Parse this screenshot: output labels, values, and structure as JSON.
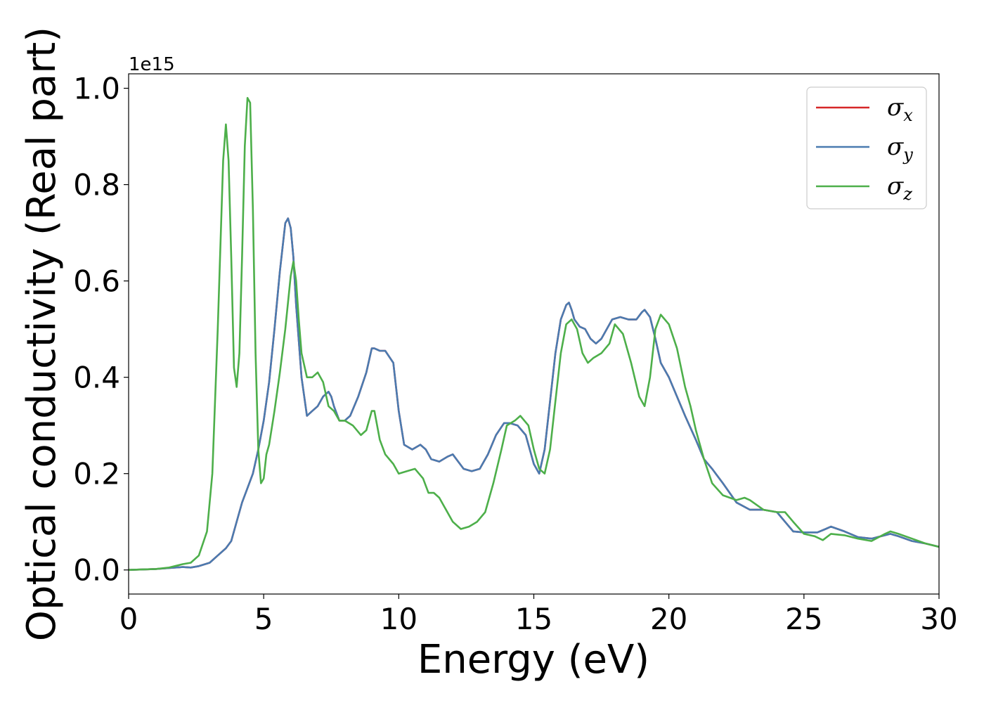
{
  "chart_data": {
    "type": "line",
    "xlabel": "Energy (eV)",
    "ylabel": "Optical conductivity (Real part)",
    "y_offset_text": "1e15",
    "xlim": [
      0,
      30
    ],
    "ylim": [
      -0.05,
      1.03
    ],
    "x_ticks": [
      0,
      5,
      10,
      15,
      20,
      25,
      30
    ],
    "x_tick_labels": [
      "0",
      "5",
      "10",
      "15",
      "20",
      "25",
      "30"
    ],
    "y_ticks": [
      0.0,
      0.2,
      0.4,
      0.6,
      0.8,
      1.0
    ],
    "y_tick_labels": [
      "0.0",
      "0.2",
      "0.4",
      "0.6",
      "0.8",
      "1.0"
    ],
    "grid": false,
    "legend_position": "top-right",
    "series": [
      {
        "name": "σx",
        "symbol": "σ",
        "subscript": "x",
        "color": "#d62728",
        "x": [
          0,
          1,
          1.5,
          2,
          2.3,
          2.6,
          3.0,
          3.3,
          3.6,
          3.8,
          4.0,
          4.2,
          4.4,
          4.6,
          4.8,
          5.0,
          5.2,
          5.4,
          5.6,
          5.8,
          5.9,
          6.0,
          6.1,
          6.2,
          6.4,
          6.6,
          6.8,
          7.0,
          7.2,
          7.4,
          7.5,
          7.6,
          7.8,
          8.0,
          8.2,
          8.5,
          8.8,
          9.0,
          9.1,
          9.3,
          9.5,
          9.8,
          10.0,
          10.2,
          10.5,
          10.8,
          11.0,
          11.2,
          11.5,
          11.8,
          12.0,
          12.2,
          12.4,
          12.7,
          13.0,
          13.3,
          13.6,
          13.9,
          14.1,
          14.4,
          14.7,
          15.0,
          15.2,
          15.4,
          15.6,
          15.8,
          16.0,
          16.2,
          16.3,
          16.4,
          16.5,
          16.7,
          16.9,
          17.1,
          17.3,
          17.5,
          17.7,
          17.9,
          18.2,
          18.5,
          18.8,
          19.0,
          19.1,
          19.3,
          19.5,
          19.7,
          20.0,
          20.3,
          20.6,
          21.0,
          21.3,
          21.6,
          22.0,
          22.5,
          23.0,
          23.5,
          24.0,
          24.3,
          24.6,
          25.0,
          25.5,
          25.8,
          26.0,
          26.5,
          27.0,
          27.5,
          28.0,
          28.2,
          28.5,
          29.0,
          29.5,
          30.0
        ],
        "y": [
          0.0,
          0.002,
          0.004,
          0.006,
          0.005,
          0.008,
          0.015,
          0.03,
          0.045,
          0.06,
          0.1,
          0.14,
          0.17,
          0.2,
          0.25,
          0.31,
          0.39,
          0.5,
          0.62,
          0.72,
          0.73,
          0.71,
          0.65,
          0.55,
          0.4,
          0.32,
          0.33,
          0.34,
          0.36,
          0.37,
          0.36,
          0.34,
          0.31,
          0.31,
          0.32,
          0.36,
          0.41,
          0.46,
          0.46,
          0.455,
          0.455,
          0.43,
          0.33,
          0.26,
          0.25,
          0.26,
          0.25,
          0.23,
          0.225,
          0.235,
          0.24,
          0.225,
          0.21,
          0.205,
          0.21,
          0.24,
          0.28,
          0.305,
          0.305,
          0.3,
          0.28,
          0.22,
          0.2,
          0.25,
          0.35,
          0.45,
          0.52,
          0.55,
          0.555,
          0.54,
          0.52,
          0.505,
          0.5,
          0.48,
          0.47,
          0.48,
          0.5,
          0.52,
          0.525,
          0.52,
          0.52,
          0.535,
          0.54,
          0.525,
          0.48,
          0.43,
          0.4,
          0.36,
          0.32,
          0.27,
          0.23,
          0.21,
          0.18,
          0.14,
          0.125,
          0.125,
          0.12,
          0.1,
          0.08,
          0.078,
          0.078,
          0.085,
          0.09,
          0.08,
          0.068,
          0.065,
          0.072,
          0.075,
          0.07,
          0.06,
          0.055,
          0.048
        ]
      },
      {
        "name": "σy",
        "symbol": "σ",
        "subscript": "y",
        "color": "#4a7bb0",
        "x": [
          0,
          1,
          1.5,
          2,
          2.3,
          2.6,
          3.0,
          3.3,
          3.6,
          3.8,
          4.0,
          4.2,
          4.4,
          4.6,
          4.8,
          5.0,
          5.2,
          5.4,
          5.6,
          5.8,
          5.9,
          6.0,
          6.1,
          6.2,
          6.4,
          6.6,
          6.8,
          7.0,
          7.2,
          7.4,
          7.5,
          7.6,
          7.8,
          8.0,
          8.2,
          8.5,
          8.8,
          9.0,
          9.1,
          9.3,
          9.5,
          9.8,
          10.0,
          10.2,
          10.5,
          10.8,
          11.0,
          11.2,
          11.5,
          11.8,
          12.0,
          12.2,
          12.4,
          12.7,
          13.0,
          13.3,
          13.6,
          13.9,
          14.1,
          14.4,
          14.7,
          15.0,
          15.2,
          15.4,
          15.6,
          15.8,
          16.0,
          16.2,
          16.3,
          16.4,
          16.5,
          16.7,
          16.9,
          17.1,
          17.3,
          17.5,
          17.7,
          17.9,
          18.2,
          18.5,
          18.8,
          19.0,
          19.1,
          19.3,
          19.5,
          19.7,
          20.0,
          20.3,
          20.6,
          21.0,
          21.3,
          21.6,
          22.0,
          22.5,
          23.0,
          23.5,
          24.0,
          24.3,
          24.6,
          25.0,
          25.5,
          25.8,
          26.0,
          26.5,
          27.0,
          27.5,
          28.0,
          28.2,
          28.5,
          29.0,
          29.5,
          30.0
        ],
        "y": [
          0.0,
          0.002,
          0.004,
          0.006,
          0.005,
          0.008,
          0.015,
          0.03,
          0.045,
          0.06,
          0.1,
          0.14,
          0.17,
          0.2,
          0.25,
          0.31,
          0.39,
          0.5,
          0.62,
          0.72,
          0.73,
          0.71,
          0.65,
          0.55,
          0.4,
          0.32,
          0.33,
          0.34,
          0.36,
          0.37,
          0.36,
          0.34,
          0.31,
          0.31,
          0.32,
          0.36,
          0.41,
          0.46,
          0.46,
          0.455,
          0.455,
          0.43,
          0.33,
          0.26,
          0.25,
          0.26,
          0.25,
          0.23,
          0.225,
          0.235,
          0.24,
          0.225,
          0.21,
          0.205,
          0.21,
          0.24,
          0.28,
          0.305,
          0.305,
          0.3,
          0.28,
          0.22,
          0.2,
          0.25,
          0.35,
          0.45,
          0.52,
          0.55,
          0.555,
          0.54,
          0.52,
          0.505,
          0.5,
          0.48,
          0.47,
          0.48,
          0.5,
          0.52,
          0.525,
          0.52,
          0.52,
          0.535,
          0.54,
          0.525,
          0.48,
          0.43,
          0.4,
          0.36,
          0.32,
          0.27,
          0.23,
          0.21,
          0.18,
          0.14,
          0.125,
          0.125,
          0.12,
          0.1,
          0.08,
          0.078,
          0.078,
          0.085,
          0.09,
          0.08,
          0.068,
          0.065,
          0.072,
          0.075,
          0.07,
          0.06,
          0.055,
          0.048
        ]
      },
      {
        "name": "σz",
        "symbol": "σ",
        "subscript": "z",
        "color": "#4daf4a",
        "x": [
          0,
          1,
          1.5,
          2,
          2.3,
          2.6,
          2.9,
          3.1,
          3.3,
          3.5,
          3.6,
          3.7,
          3.8,
          3.9,
          4.0,
          4.1,
          4.2,
          4.3,
          4.4,
          4.5,
          4.6,
          4.7,
          4.8,
          4.9,
          5.0,
          5.1,
          5.2,
          5.4,
          5.6,
          5.8,
          6.0,
          6.1,
          6.2,
          6.3,
          6.4,
          6.6,
          6.8,
          7.0,
          7.2,
          7.4,
          7.6,
          7.8,
          8.0,
          8.3,
          8.6,
          8.8,
          9.0,
          9.1,
          9.3,
          9.5,
          9.8,
          10.0,
          10.3,
          10.6,
          10.9,
          11.1,
          11.3,
          11.5,
          11.7,
          12.0,
          12.3,
          12.6,
          12.9,
          13.2,
          13.5,
          13.8,
          14.0,
          14.3,
          14.5,
          14.8,
          15.0,
          15.2,
          15.4,
          15.6,
          15.8,
          16.0,
          16.2,
          16.4,
          16.6,
          16.8,
          17.0,
          17.2,
          17.5,
          17.8,
          18.0,
          18.3,
          18.6,
          18.9,
          19.1,
          19.3,
          19.5,
          19.7,
          20.0,
          20.3,
          20.6,
          20.8,
          21.0,
          21.3,
          21.6,
          22.0,
          22.5,
          22.8,
          23.0,
          23.5,
          24.0,
          24.3,
          24.6,
          25.0,
          25.4,
          25.7,
          26.0,
          26.5,
          27.0,
          27.5,
          28.0,
          28.2,
          28.5,
          29.0,
          29.5,
          30.0
        ],
        "y": [
          0.0,
          0.002,
          0.005,
          0.012,
          0.015,
          0.03,
          0.08,
          0.2,
          0.5,
          0.85,
          0.925,
          0.85,
          0.65,
          0.42,
          0.38,
          0.45,
          0.65,
          0.88,
          0.98,
          0.97,
          0.75,
          0.45,
          0.25,
          0.18,
          0.19,
          0.24,
          0.26,
          0.33,
          0.41,
          0.5,
          0.61,
          0.64,
          0.6,
          0.52,
          0.45,
          0.4,
          0.4,
          0.41,
          0.39,
          0.34,
          0.33,
          0.31,
          0.31,
          0.3,
          0.28,
          0.29,
          0.33,
          0.33,
          0.27,
          0.24,
          0.22,
          0.2,
          0.205,
          0.21,
          0.19,
          0.16,
          0.16,
          0.15,
          0.13,
          0.1,
          0.085,
          0.09,
          0.1,
          0.12,
          0.18,
          0.25,
          0.3,
          0.31,
          0.32,
          0.3,
          0.25,
          0.21,
          0.2,
          0.25,
          0.35,
          0.45,
          0.51,
          0.52,
          0.5,
          0.45,
          0.43,
          0.44,
          0.45,
          0.47,
          0.51,
          0.49,
          0.43,
          0.36,
          0.34,
          0.4,
          0.5,
          0.53,
          0.51,
          0.46,
          0.38,
          0.34,
          0.29,
          0.23,
          0.18,
          0.155,
          0.145,
          0.15,
          0.145,
          0.125,
          0.12,
          0.12,
          0.1,
          0.075,
          0.07,
          0.062,
          0.075,
          0.072,
          0.065,
          0.06,
          0.075,
          0.08,
          0.075,
          0.065,
          0.055,
          0.048
        ]
      }
    ]
  }
}
